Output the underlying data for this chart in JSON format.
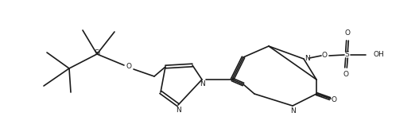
{
  "bg_color": "#ffffff",
  "line_color": "#1a1a1a",
  "line_width": 1.2,
  "fig_width": 5.27,
  "fig_height": 1.76,
  "dpi": 100,
  "xlim": [
    0,
    5.27
  ],
  "ylim": [
    0,
    1.76
  ]
}
